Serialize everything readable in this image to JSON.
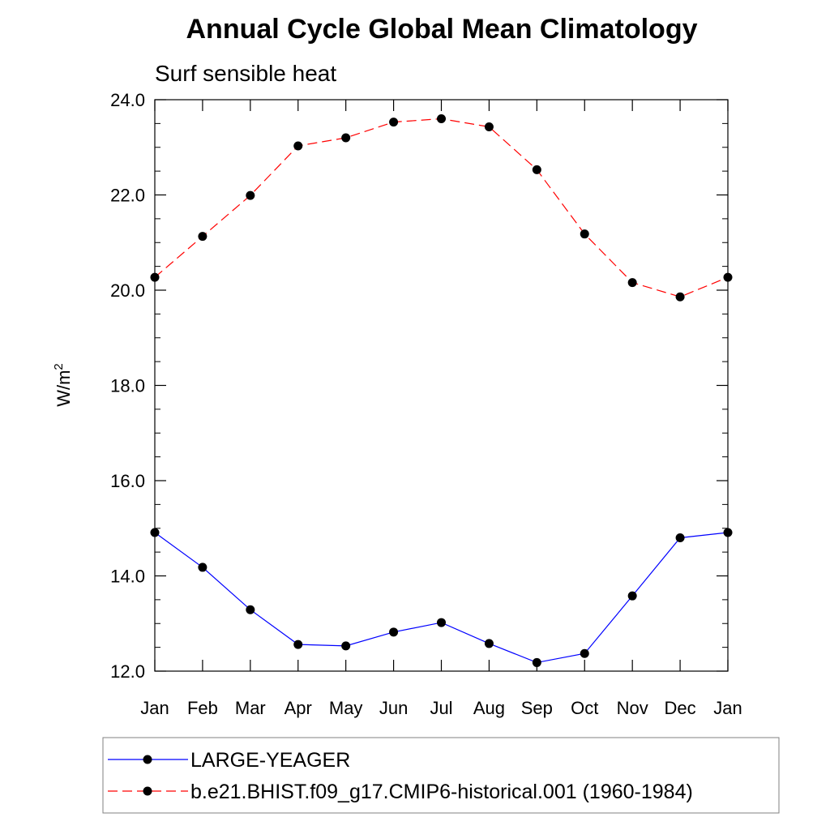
{
  "chart_data": {
    "type": "line",
    "title": "Annual Cycle Global Mean Climatology",
    "subtitle": "Surf sensible heat",
    "ylabel": "W/m",
    "ylabel_sup": "2",
    "xlabel": "",
    "categories": [
      "Jan",
      "Feb",
      "Mar",
      "Apr",
      "May",
      "Jun",
      "Jul",
      "Aug",
      "Sep",
      "Oct",
      "Nov",
      "Dec",
      "Jan"
    ],
    "ylim": [
      12.0,
      24.0
    ],
    "yticks": [
      "12.0",
      "14.0",
      "16.0",
      "18.0",
      "20.0",
      "22.0",
      "24.0"
    ],
    "ytick_values": [
      12,
      14,
      16,
      18,
      20,
      22,
      24
    ],
    "grid": false,
    "legend_position": "bottom",
    "series": [
      {
        "name": "LARGE-YEAGER",
        "color": "#0000ff",
        "dash": "solid",
        "values": [
          14.91,
          14.18,
          13.29,
          12.56,
          12.53,
          12.82,
          13.02,
          12.58,
          12.18,
          12.37,
          13.58,
          14.8,
          14.91
        ]
      },
      {
        "name": "b.e21.BHIST.f09_g17.CMIP6-historical.001 (1960-1984)",
        "color": "#ff0000",
        "dash": "dashed",
        "values": [
          20.27,
          21.13,
          21.99,
          23.03,
          23.2,
          23.53,
          23.6,
          23.43,
          22.53,
          21.18,
          20.16,
          19.86,
          20.27
        ]
      }
    ]
  }
}
